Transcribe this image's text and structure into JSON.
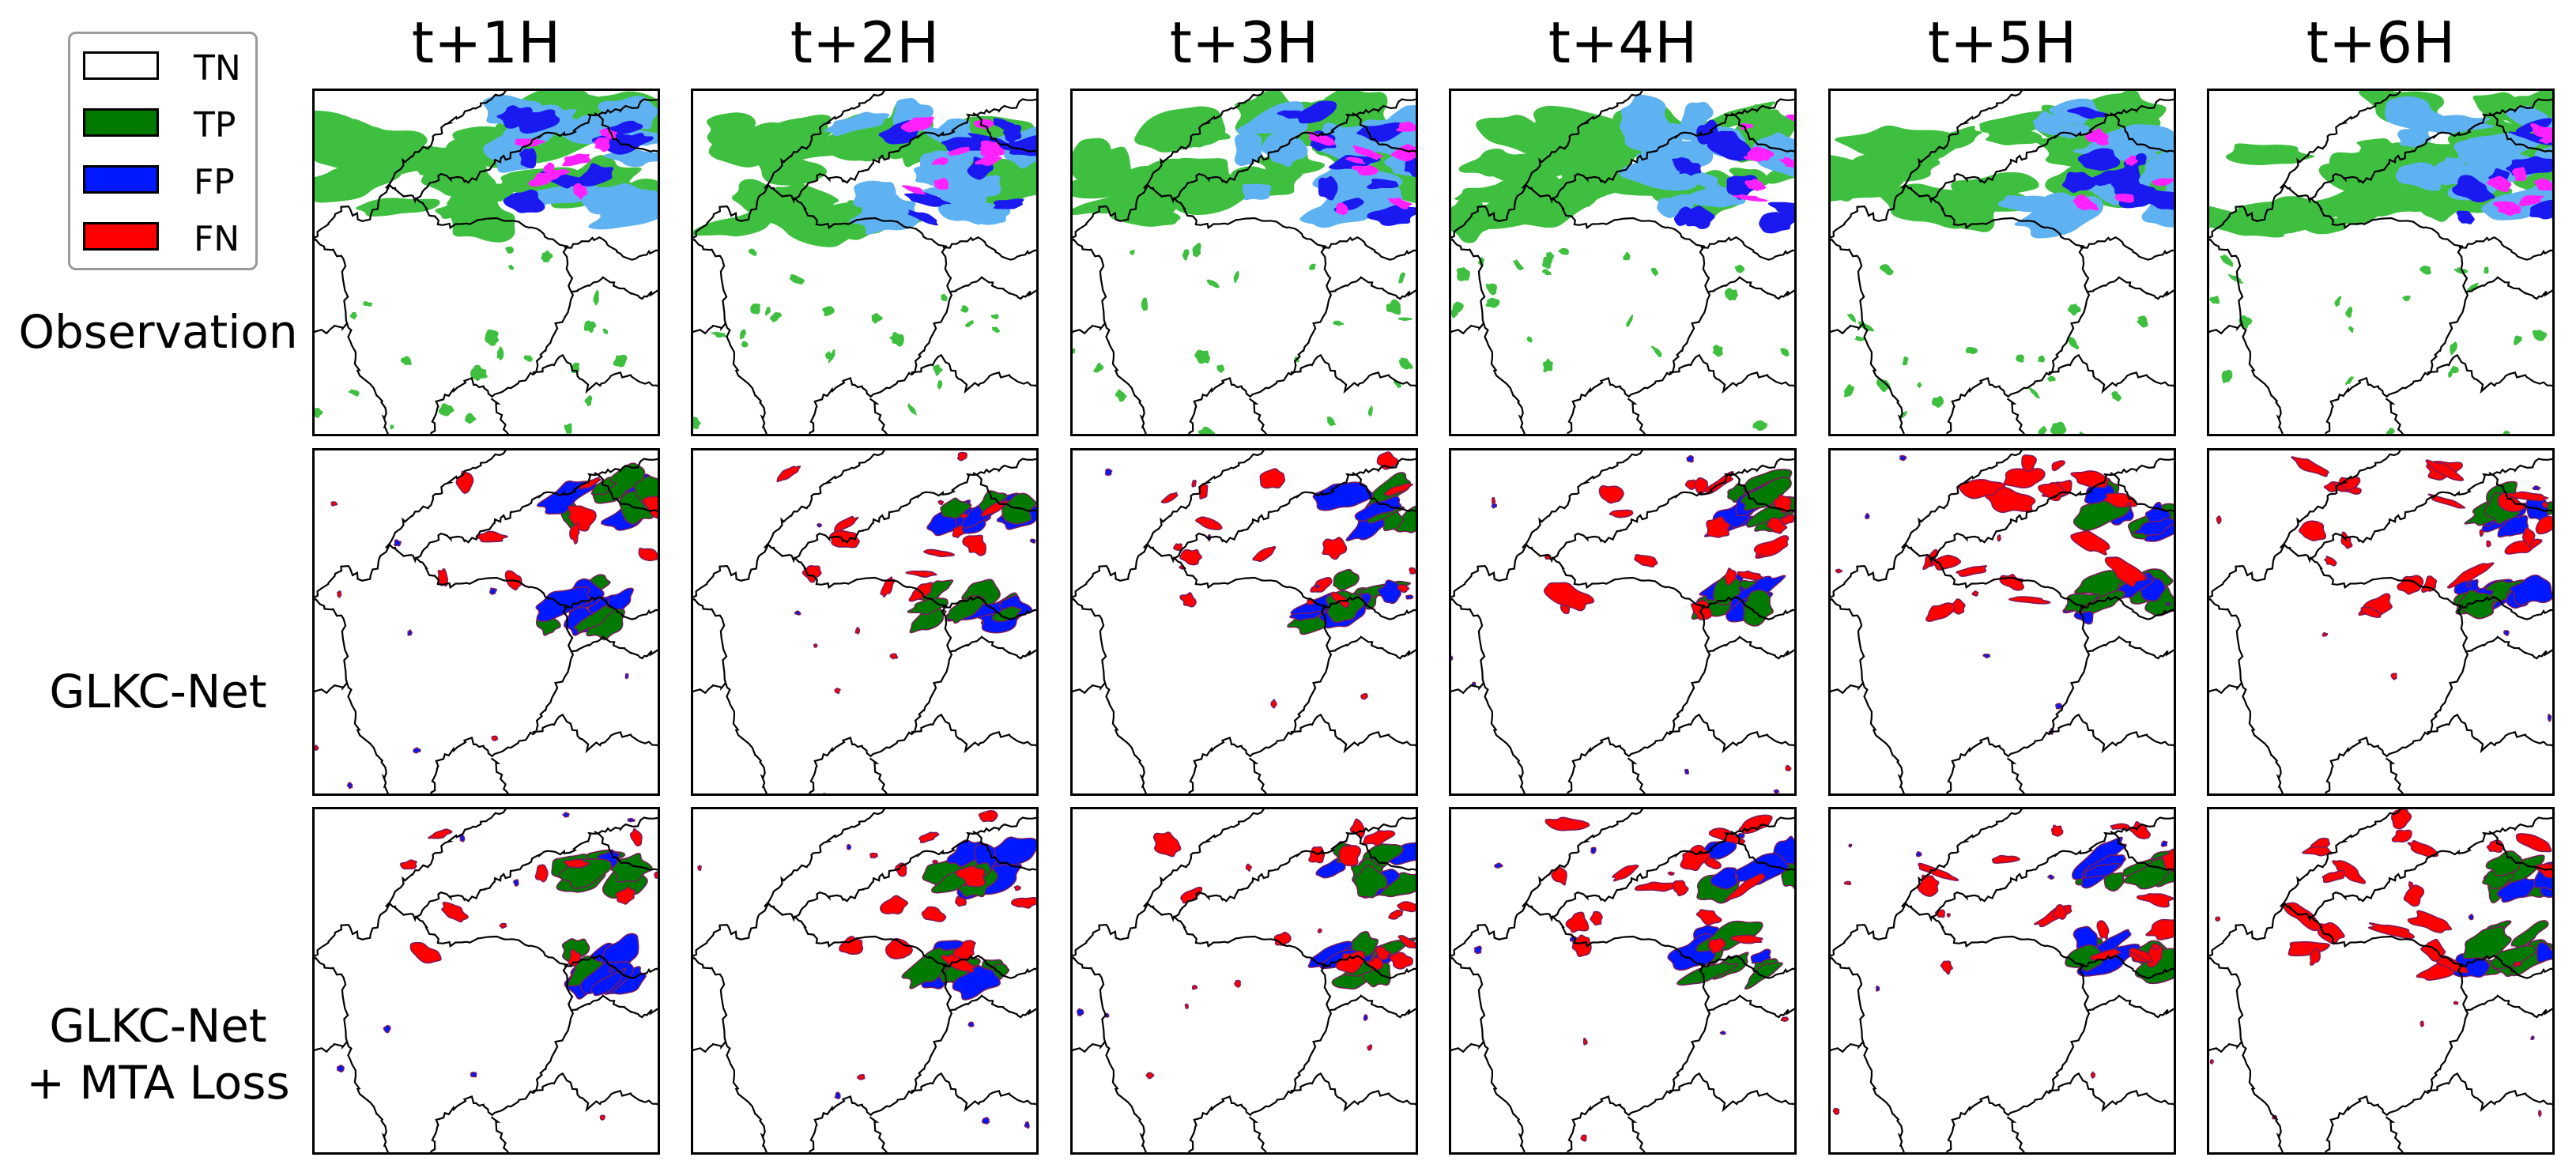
{
  "columns": [
    "t+1H",
    "t+2H",
    "t+3H",
    "t+4H",
    "t+5H",
    "t+6H"
  ],
  "rows": [
    {
      "lines": [
        "Observation"
      ]
    },
    {
      "lines": [
        "GLKC-Net"
      ]
    },
    {
      "lines": [
        "GLKC-Net",
        "+ MTA Loss"
      ]
    }
  ],
  "legend": [
    {
      "label": "TN",
      "color": "#ffffff"
    },
    {
      "label": "TP",
      "color": "#007a00"
    },
    {
      "label": "FP",
      "color": "#0018ff"
    },
    {
      "label": "FN",
      "color": "#ff0000"
    }
  ],
  "observation_colors": [
    "#3fbf3f",
    "#5fb2f2",
    "#1a1af0",
    "#ff22ff"
  ],
  "colors": {
    "TN": "#ffffff",
    "TP": "#007a00",
    "FP": "#0018ff",
    "FN": "#ff0000"
  }
}
